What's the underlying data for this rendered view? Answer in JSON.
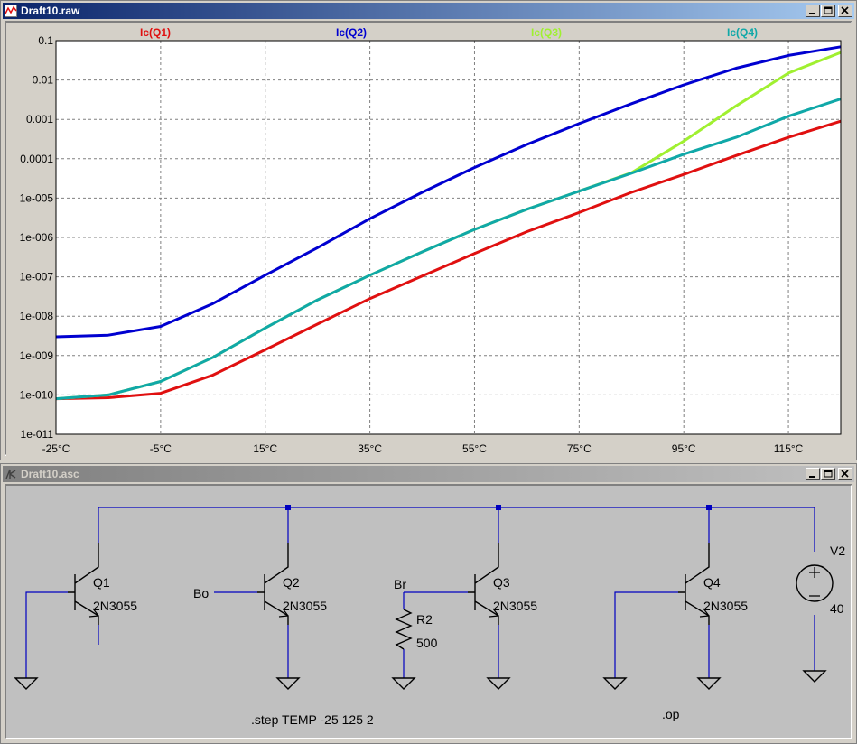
{
  "plot_window": {
    "title": "Draft10.raw",
    "icon": "waveform-icon"
  },
  "schematic_window": {
    "title": "Draft10.asc",
    "icon": "schematic-icon",
    "components": {
      "q1": {
        "name": "Q1",
        "model": "2N3055"
      },
      "q2": {
        "name": "Q2",
        "model": "2N3055"
      },
      "q3": {
        "name": "Q3",
        "model": "2N3055"
      },
      "q4": {
        "name": "Q4",
        "model": "2N3055"
      },
      "r2": {
        "name": "R2",
        "value": "500"
      },
      "v2": {
        "name": "V2",
        "value": "40"
      }
    },
    "net_labels": {
      "bo": "Bo",
      "br": "Br"
    },
    "directives": {
      "step": ".step TEMP -25 125 2",
      "op": ".op"
    }
  },
  "chart_data": {
    "type": "line",
    "xlabel": "",
    "ylabel": "",
    "x_ticks": [
      "-25°C",
      "-5°C",
      "15°C",
      "35°C",
      "55°C",
      "75°C",
      "95°C",
      "115°C"
    ],
    "x_tick_values": [
      -25,
      -5,
      15,
      35,
      55,
      75,
      95,
      115
    ],
    "xlim": [
      -25,
      125
    ],
    "y_scale": "log",
    "ylim": [
      1e-11,
      0.1
    ],
    "y_ticks": [
      "0.1",
      "0.01",
      "0.001",
      "0.0001",
      "1e-005",
      "1e-006",
      "1e-007",
      "1e-008",
      "1e-009",
      "1e-010",
      "1e-011"
    ],
    "y_tick_values": [
      0.1,
      0.01,
      0.001,
      0.0001,
      1e-05,
      1e-06,
      1e-07,
      1e-08,
      1e-09,
      1e-10,
      1e-11
    ],
    "grid": true,
    "legend": "top",
    "background": "#ffffff",
    "x": [
      -25,
      -15,
      -5,
      5,
      15,
      25,
      35,
      45,
      55,
      65,
      75,
      85,
      95,
      105,
      115,
      125
    ],
    "series": [
      {
        "name": "Ic(Q1)",
        "color": "#e01010",
        "values": [
          8e-11,
          8.5e-11,
          1.1e-10,
          3.2e-10,
          1.4e-09,
          6.3e-09,
          2.8e-08,
          1.05e-07,
          3.9e-07,
          1.4e-06,
          4.3e-06,
          1.4e-05,
          4e-05,
          0.00012,
          0.00035,
          0.0009
        ]
      },
      {
        "name": "Ic(Q2)",
        "color": "#0000d0",
        "values": [
          3e-09,
          3.3e-09,
          5.5e-09,
          2.1e-08,
          1.1e-07,
          5.5e-07,
          3e-06,
          1.4e-05,
          6e-05,
          0.00023,
          0.00078,
          0.0025,
          0.0075,
          0.02,
          0.042,
          0.07
        ]
      },
      {
        "name": "Ic(Q3)",
        "color": "#a0f030",
        "values": [
          8e-11,
          1e-10,
          2.2e-10,
          9e-10,
          5e-09,
          2.6e-08,
          1.1e-07,
          4.3e-07,
          1.6e-06,
          5.2e-06,
          1.5e-05,
          4.4e-05,
          0.00028,
          0.0022,
          0.015,
          0.05
        ]
      },
      {
        "name": "Ic(Q4)",
        "color": "#10a8a8",
        "values": [
          8e-11,
          1e-10,
          2.2e-10,
          9e-10,
          5e-09,
          2.6e-08,
          1.1e-07,
          4.3e-07,
          1.6e-06,
          5.2e-06,
          1.5e-05,
          4.3e-05,
          0.00013,
          0.00035,
          0.0012,
          0.0033
        ]
      }
    ]
  }
}
